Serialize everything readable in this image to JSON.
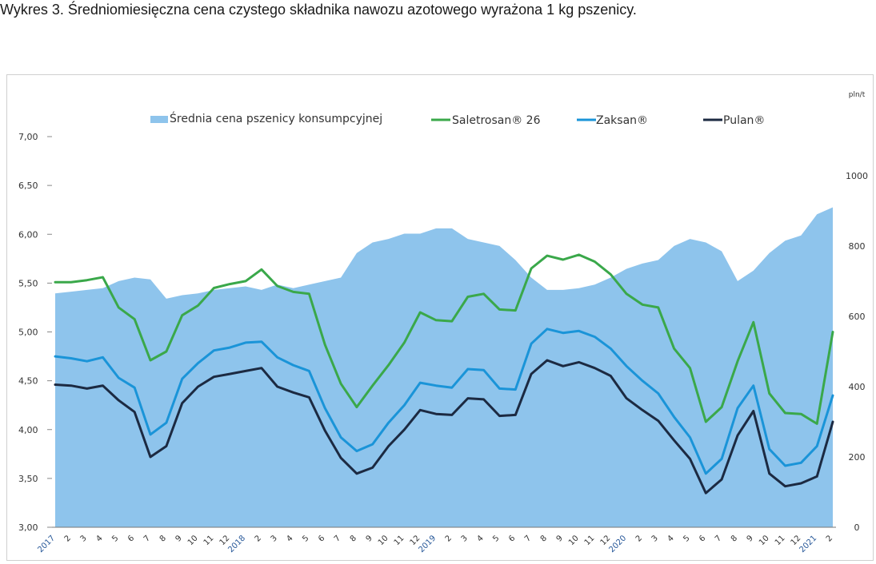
{
  "title": "Wykres 3. Średniomiesięczna cena czystego składnika nawozu azotowego wyrażona 1 kg pszenicy.",
  "chart_data": {
    "type": "line",
    "categories": [
      "2017",
      "2",
      "3",
      "4",
      "5",
      "6",
      "7",
      "8",
      "9",
      "10",
      "11",
      "12",
      "2018",
      "2",
      "3",
      "4",
      "5",
      "6",
      "7",
      "8",
      "9",
      "10",
      "11",
      "12",
      "2019",
      "2",
      "3",
      "4",
      "5",
      "6",
      "7",
      "8",
      "9",
      "10",
      "11",
      "12",
      "2020",
      "2",
      "3",
      "4",
      "5",
      "6",
      "7",
      "8",
      "9",
      "10",
      "11",
      "12",
      "2021",
      "2"
    ],
    "y_left": {
      "min": 3.0,
      "max": 7.0,
      "ticks": [
        "3,00",
        "3,50",
        "4,00",
        "4,50",
        "5,00",
        "5,50",
        "6,00",
        "6,50",
        "7,00"
      ]
    },
    "y_right": {
      "unit": "pln/t",
      "min": 0,
      "max": 1100,
      "ticks": [
        "0",
        "200",
        "400",
        "600",
        "800",
        "1000"
      ]
    },
    "grid": false,
    "legend": "top",
    "area_series": {
      "name": "Średnia cena pszenicy konsumpcyjnej",
      "axis": "right",
      "color": "#8ec4ec",
      "values": [
        665,
        670,
        675,
        680,
        700,
        710,
        705,
        650,
        660,
        665,
        675,
        680,
        685,
        675,
        690,
        680,
        690,
        700,
        710,
        780,
        810,
        820,
        835,
        835,
        850,
        850,
        820,
        810,
        800,
        760,
        710,
        675,
        675,
        680,
        690,
        710,
        735,
        750,
        760,
        800,
        820,
        810,
        785,
        700,
        730,
        780,
        815,
        830,
        890,
        910
      ]
    },
    "series": [
      {
        "name": "Saletrosan® 26",
        "axis": "left",
        "color": "#3aa84a",
        "values": [
          5.51,
          5.51,
          5.53,
          5.56,
          5.25,
          5.13,
          4.71,
          4.8,
          5.17,
          5.27,
          5.45,
          5.49,
          5.52,
          5.64,
          5.47,
          5.41,
          5.39,
          4.87,
          4.47,
          4.23,
          4.45,
          4.66,
          4.89,
          5.2,
          5.12,
          5.11,
          5.36,
          5.39,
          5.23,
          5.22,
          5.65,
          5.78,
          5.74,
          5.79,
          5.72,
          5.59,
          5.39,
          5.28,
          5.25,
          4.83,
          4.63,
          4.08,
          4.23,
          4.7,
          5.1,
          4.37,
          4.17,
          4.16,
          4.06,
          5.0
        ]
      },
      {
        "name": "Zaksan®",
        "axis": "left",
        "color": "#1a94d8",
        "values": [
          4.75,
          4.73,
          4.7,
          4.74,
          4.53,
          4.43,
          3.95,
          4.07,
          4.52,
          4.68,
          4.81,
          4.84,
          4.89,
          4.9,
          4.74,
          4.66,
          4.6,
          4.22,
          3.92,
          3.78,
          3.85,
          4.07,
          4.25,
          4.48,
          4.45,
          4.43,
          4.62,
          4.61,
          4.42,
          4.41,
          4.88,
          5.03,
          4.99,
          5.01,
          4.95,
          4.83,
          4.65,
          4.5,
          4.37,
          4.13,
          3.92,
          3.55,
          3.7,
          4.22,
          4.45,
          3.8,
          3.63,
          3.66,
          3.83,
          4.35
        ]
      },
      {
        "name": "Pulan®",
        "axis": "left",
        "color": "#1c2a42",
        "values": [
          4.46,
          4.45,
          4.42,
          4.45,
          4.3,
          4.18,
          3.72,
          3.83,
          4.27,
          4.44,
          4.54,
          4.57,
          4.6,
          4.63,
          4.44,
          4.38,
          4.33,
          3.99,
          3.71,
          3.55,
          3.61,
          3.83,
          4.0,
          4.2,
          4.16,
          4.15,
          4.32,
          4.31,
          4.14,
          4.15,
          4.57,
          4.71,
          4.65,
          4.69,
          4.63,
          4.55,
          4.32,
          4.2,
          4.09,
          3.89,
          3.7,
          3.35,
          3.49,
          3.94,
          4.19,
          3.55,
          3.42,
          3.45,
          3.52,
          4.08
        ]
      }
    ]
  }
}
